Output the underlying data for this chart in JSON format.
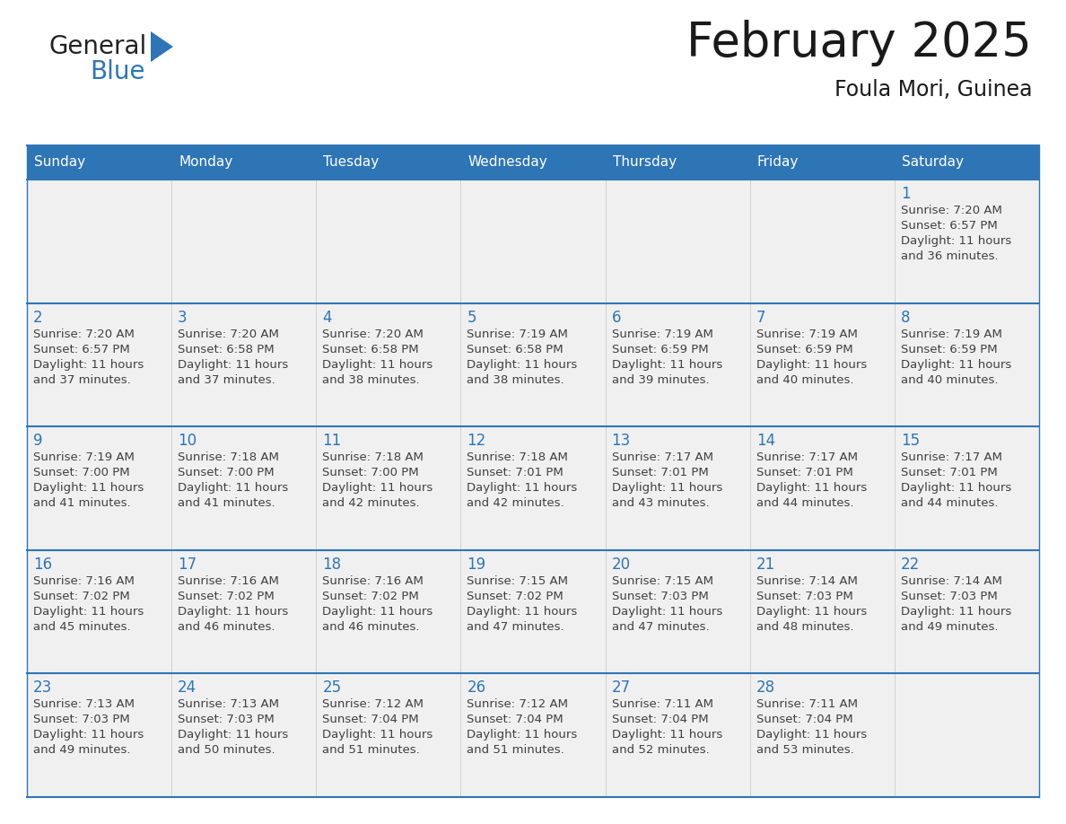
{
  "title": "February 2025",
  "subtitle": "Foula Mori, Guinea",
  "days_of_week": [
    "Sunday",
    "Monday",
    "Tuesday",
    "Wednesday",
    "Thursday",
    "Friday",
    "Saturday"
  ],
  "header_bg": "#2E75B6",
  "header_text_color": "#FFFFFF",
  "cell_bg": "#F0F0F0",
  "border_color": "#2E75B6",
  "day_num_color": "#2E75B6",
  "text_color": "#404040",
  "calendar": [
    [
      null,
      null,
      null,
      null,
      null,
      null,
      {
        "day": 1,
        "sunrise": "7:20 AM",
        "sunset": "6:57 PM",
        "daylight": "11 hours",
        "daylight2": "and 36 minutes."
      }
    ],
    [
      {
        "day": 2,
        "sunrise": "7:20 AM",
        "sunset": "6:57 PM",
        "daylight": "11 hours",
        "daylight2": "and 37 minutes."
      },
      {
        "day": 3,
        "sunrise": "7:20 AM",
        "sunset": "6:58 PM",
        "daylight": "11 hours",
        "daylight2": "and 37 minutes."
      },
      {
        "day": 4,
        "sunrise": "7:20 AM",
        "sunset": "6:58 PM",
        "daylight": "11 hours",
        "daylight2": "and 38 minutes."
      },
      {
        "day": 5,
        "sunrise": "7:19 AM",
        "sunset": "6:58 PM",
        "daylight": "11 hours",
        "daylight2": "and 38 minutes."
      },
      {
        "day": 6,
        "sunrise": "7:19 AM",
        "sunset": "6:59 PM",
        "daylight": "11 hours",
        "daylight2": "and 39 minutes."
      },
      {
        "day": 7,
        "sunrise": "7:19 AM",
        "sunset": "6:59 PM",
        "daylight": "11 hours",
        "daylight2": "and 40 minutes."
      },
      {
        "day": 8,
        "sunrise": "7:19 AM",
        "sunset": "6:59 PM",
        "daylight": "11 hours",
        "daylight2": "and 40 minutes."
      }
    ],
    [
      {
        "day": 9,
        "sunrise": "7:19 AM",
        "sunset": "7:00 PM",
        "daylight": "11 hours",
        "daylight2": "and 41 minutes."
      },
      {
        "day": 10,
        "sunrise": "7:18 AM",
        "sunset": "7:00 PM",
        "daylight": "11 hours",
        "daylight2": "and 41 minutes."
      },
      {
        "day": 11,
        "sunrise": "7:18 AM",
        "sunset": "7:00 PM",
        "daylight": "11 hours",
        "daylight2": "and 42 minutes."
      },
      {
        "day": 12,
        "sunrise": "7:18 AM",
        "sunset": "7:01 PM",
        "daylight": "11 hours",
        "daylight2": "and 42 minutes."
      },
      {
        "day": 13,
        "sunrise": "7:17 AM",
        "sunset": "7:01 PM",
        "daylight": "11 hours",
        "daylight2": "and 43 minutes."
      },
      {
        "day": 14,
        "sunrise": "7:17 AM",
        "sunset": "7:01 PM",
        "daylight": "11 hours",
        "daylight2": "and 44 minutes."
      },
      {
        "day": 15,
        "sunrise": "7:17 AM",
        "sunset": "7:01 PM",
        "daylight": "11 hours",
        "daylight2": "and 44 minutes."
      }
    ],
    [
      {
        "day": 16,
        "sunrise": "7:16 AM",
        "sunset": "7:02 PM",
        "daylight": "11 hours",
        "daylight2": "and 45 minutes."
      },
      {
        "day": 17,
        "sunrise": "7:16 AM",
        "sunset": "7:02 PM",
        "daylight": "11 hours",
        "daylight2": "and 46 minutes."
      },
      {
        "day": 18,
        "sunrise": "7:16 AM",
        "sunset": "7:02 PM",
        "daylight": "11 hours",
        "daylight2": "and 46 minutes."
      },
      {
        "day": 19,
        "sunrise": "7:15 AM",
        "sunset": "7:02 PM",
        "daylight": "11 hours",
        "daylight2": "and 47 minutes."
      },
      {
        "day": 20,
        "sunrise": "7:15 AM",
        "sunset": "7:03 PM",
        "daylight": "11 hours",
        "daylight2": "and 47 minutes."
      },
      {
        "day": 21,
        "sunrise": "7:14 AM",
        "sunset": "7:03 PM",
        "daylight": "11 hours",
        "daylight2": "and 48 minutes."
      },
      {
        "day": 22,
        "sunrise": "7:14 AM",
        "sunset": "7:03 PM",
        "daylight": "11 hours",
        "daylight2": "and 49 minutes."
      }
    ],
    [
      {
        "day": 23,
        "sunrise": "7:13 AM",
        "sunset": "7:03 PM",
        "daylight": "11 hours",
        "daylight2": "and 49 minutes."
      },
      {
        "day": 24,
        "sunrise": "7:13 AM",
        "sunset": "7:03 PM",
        "daylight": "11 hours",
        "daylight2": "and 50 minutes."
      },
      {
        "day": 25,
        "sunrise": "7:12 AM",
        "sunset": "7:04 PM",
        "daylight": "11 hours",
        "daylight2": "and 51 minutes."
      },
      {
        "day": 26,
        "sunrise": "7:12 AM",
        "sunset": "7:04 PM",
        "daylight": "11 hours",
        "daylight2": "and 51 minutes."
      },
      {
        "day": 27,
        "sunrise": "7:11 AM",
        "sunset": "7:04 PM",
        "daylight": "11 hours",
        "daylight2": "and 52 minutes."
      },
      {
        "day": 28,
        "sunrise": "7:11 AM",
        "sunset": "7:04 PM",
        "daylight": "11 hours",
        "daylight2": "and 53 minutes."
      },
      null
    ]
  ]
}
